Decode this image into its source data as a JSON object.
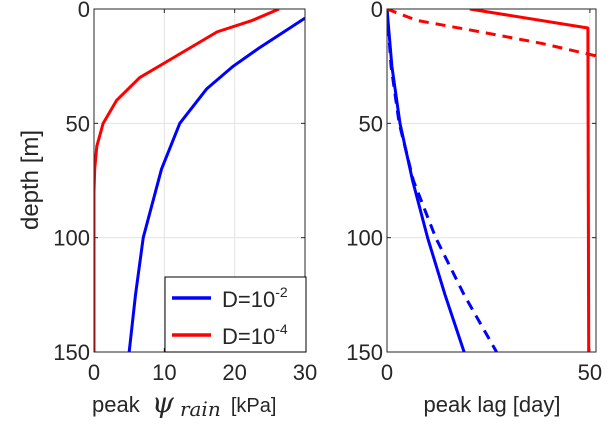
{
  "chart_data": [
    {
      "type": "line",
      "xlabel_prefix": "peak",
      "xlabel_symbol": "ψ",
      "xlabel_subscript": "rain",
      "xlabel_unit": "[kPa]",
      "ylabel": "depth [m]",
      "xlim": [
        0,
        30
      ],
      "ylim": [
        0,
        150
      ],
      "y_reversed": true,
      "xticks": [
        "0",
        "10",
        "20",
        "30"
      ],
      "yticks": [
        "0",
        "50",
        "100",
        "150"
      ],
      "grid": true,
      "legend": {
        "placement": "bottom-right",
        "entries": [
          {
            "base": "D=10",
            "exp": "-2",
            "color": "#0000ff"
          },
          {
            "base": "D=10",
            "exp": "-4",
            "color": "#ff0000"
          }
        ]
      },
      "series": [
        {
          "color": "#0000ff",
          "style": "solid",
          "x": [
            30,
            27,
            23.5,
            19.8,
            16,
            12.2,
            9.6,
            7,
            5.9,
            5
          ],
          "y": [
            4,
            10,
            17,
            25,
            35,
            50,
            70,
            100,
            125,
            150
          ]
        },
        {
          "color": "#ff0000",
          "style": "solid",
          "x": [
            26.3,
            22.5,
            17.5,
            12,
            6.5,
            3.2,
            1.3,
            0.4,
            0.1,
            0,
            0
          ],
          "y": [
            0,
            5,
            10,
            20,
            30,
            40,
            50,
            60,
            70,
            80,
            150
          ]
        }
      ]
    },
    {
      "type": "line",
      "xlabel": "peak lag [day]",
      "xlim": [
        0,
        51.5
      ],
      "ylim": [
        0,
        150
      ],
      "y_reversed": true,
      "xticks": [
        "0",
        "50"
      ],
      "yticks": [
        "0",
        "50",
        "100",
        "150"
      ],
      "grid": true,
      "series": [
        {
          "color": "#0000ff",
          "style": "solid",
          "x": [
            0,
            1.2,
            3.2,
            6.3,
            10,
            14.3,
            19
          ],
          "y": [
            0,
            25,
            50,
            75,
            100,
            125,
            150
          ]
        },
        {
          "color": "#0000ff",
          "style": "dashed",
          "x": [
            0,
            1,
            3,
            6.5,
            12,
            19,
            27
          ],
          "y": [
            0,
            25,
            50,
            75,
            100,
            125,
            150
          ]
        },
        {
          "color": "#ff0000",
          "style": "solid",
          "x": [
            20.4,
            49.5,
            49.7
          ],
          "y": [
            0,
            8.3,
            150
          ]
        },
        {
          "color": "#ff0000",
          "style": "dashed",
          "x": [
            0,
            7.4,
            23,
            38,
            51.5
          ],
          "y": [
            0,
            5,
            10,
            15,
            20.5
          ]
        }
      ]
    }
  ]
}
